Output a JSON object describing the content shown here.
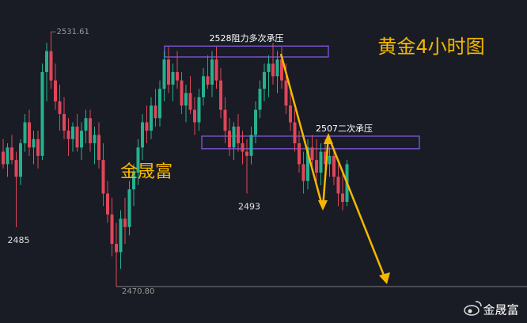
{
  "chart_data": {
    "type": "candlestick",
    "title": "黄金4小时图",
    "watermark": "金晟富",
    "brand": "金晟富",
    "up_color": "#26b08f",
    "down_color": "#e0465a",
    "ylim": [
      2462.1,
      2539.2
    ],
    "candles": [
      [
        2503,
        2506,
        2499,
        2500
      ],
      [
        2500,
        2505,
        2497,
        2504
      ],
      [
        2504,
        2507,
        2500,
        2501
      ],
      [
        2501,
        2503,
        2485,
        2497
      ],
      [
        2497,
        2506,
        2495,
        2505
      ],
      [
        2505,
        2512,
        2503,
        2510
      ],
      [
        2510,
        2513,
        2502,
        2504
      ],
      [
        2504,
        2508,
        2500,
        2506
      ],
      [
        2506,
        2508,
        2499,
        2502
      ],
      [
        2502,
        2524,
        2501,
        2522
      ],
      [
        2522,
        2529,
        2515,
        2527
      ],
      [
        2527,
        2531.61,
        2518,
        2520
      ],
      [
        2520,
        2524,
        2513,
        2515
      ],
      [
        2515,
        2519,
        2508,
        2512
      ],
      [
        2512,
        2516,
        2506,
        2508
      ],
      [
        2508,
        2511,
        2502,
        2506
      ],
      [
        2506,
        2510,
        2503,
        2509
      ],
      [
        2509,
        2512,
        2503,
        2504
      ],
      [
        2504,
        2510,
        2501,
        2508
      ],
      [
        2508,
        2513,
        2505,
        2511
      ],
      [
        2511,
        2513,
        2503,
        2505
      ],
      [
        2505,
        2509,
        2500,
        2507
      ],
      [
        2507,
        2510,
        2499,
        2501
      ],
      [
        2501,
        2505,
        2490,
        2493
      ],
      [
        2493,
        2496,
        2486,
        2488
      ],
      [
        2488,
        2492,
        2478,
        2481
      ],
      [
        2481,
        2486,
        2470.8,
        2479
      ],
      [
        2479,
        2489,
        2475,
        2487
      ],
      [
        2487,
        2492,
        2481,
        2485
      ],
      [
        2485,
        2496,
        2483,
        2494
      ],
      [
        2494,
        2500,
        2490,
        2498
      ],
      [
        2498,
        2506,
        2495,
        2504
      ],
      [
        2504,
        2512,
        2501,
        2510
      ],
      [
        2510,
        2514,
        2505,
        2508
      ],
      [
        2508,
        2516,
        2506,
        2514
      ],
      [
        2514,
        2518,
        2509,
        2511
      ],
      [
        2511,
        2520,
        2509,
        2518
      ],
      [
        2518,
        2527,
        2515,
        2525
      ],
      [
        2525,
        2528,
        2517,
        2519
      ],
      [
        2519,
        2524,
        2515,
        2522
      ],
      [
        2522,
        2527,
        2518,
        2520
      ],
      [
        2520,
        2522,
        2512,
        2514
      ],
      [
        2514,
        2519,
        2510,
        2517
      ],
      [
        2517,
        2521,
        2512,
        2513
      ],
      [
        2513,
        2516,
        2507,
        2510
      ],
      [
        2510,
        2518,
        2508,
        2516
      ],
      [
        2516,
        2523,
        2514,
        2521
      ],
      [
        2521,
        2526,
        2518,
        2519
      ],
      [
        2519,
        2527,
        2516,
        2525
      ],
      [
        2525,
        2528,
        2518,
        2520
      ],
      [
        2520,
        2523,
        2511,
        2513
      ],
      [
        2513,
        2516,
        2505,
        2508
      ],
      [
        2508,
        2511,
        2502,
        2504
      ],
      [
        2504,
        2510,
        2501,
        2509
      ],
      [
        2509,
        2512,
        2503,
        2505
      ],
      [
        2505,
        2508,
        2500,
        2503
      ],
      [
        2503,
        2506,
        2493,
        2502
      ],
      [
        2502,
        2509,
        2500,
        2507
      ],
      [
        2507,
        2515,
        2505,
        2513
      ],
      [
        2513,
        2520,
        2511,
        2518
      ],
      [
        2518,
        2524,
        2515,
        2522
      ],
      [
        2522,
        2526,
        2516,
        2524
      ],
      [
        2524,
        2529,
        2519,
        2521
      ],
      [
        2521,
        2527,
        2517,
        2525
      ],
      [
        2525,
        2528,
        2518,
        2520
      ],
      [
        2520,
        2524,
        2512,
        2514
      ],
      [
        2514,
        2518,
        2508,
        2510
      ],
      [
        2510,
        2513,
        2503,
        2505
      ],
      [
        2505,
        2508,
        2498,
        2500
      ],
      [
        2500,
        2503,
        2493,
        2496
      ],
      [
        2496,
        2506,
        2494,
        2504
      ],
      [
        2504,
        2507,
        2499,
        2501
      ],
      [
        2501,
        2506,
        2496,
        2498
      ],
      [
        2498,
        2505,
        2495,
        2503
      ],
      [
        2503,
        2506,
        2498,
        2500
      ],
      [
        2500,
        2504,
        2497,
        2502
      ],
      [
        2502,
        2504,
        2495,
        2497
      ],
      [
        2497,
        2500,
        2490,
        2493
      ],
      [
        2493,
        2498,
        2489,
        2491
      ],
      [
        2491,
        2501,
        2490,
        2500
      ]
    ],
    "price_labels": [
      2531.61,
      {
        "value": 2470.8,
        "label": "2470.80"
      },
      2485,
      2493
    ],
    "zones": [
      {
        "label": "2528阻力多次承压",
        "top": 2528.2,
        "bottom": 2525.6
      },
      {
        "label": "2507二次承压",
        "top": 2506.7,
        "bottom": 2503.7
      }
    ]
  }
}
